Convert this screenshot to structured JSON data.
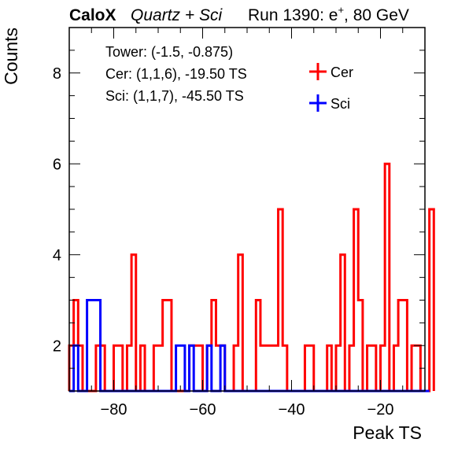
{
  "chart_data": {
    "type": "histogram",
    "title": {
      "brand": "CaloX",
      "detector": "Quartz + Sci",
      "run_info": "Run 1390: e",
      "run_superscript": "+",
      "run_tail": ", 80 GeV"
    },
    "xlabel": "Peak TS",
    "ylabel": "Counts",
    "xlim": [
      -90,
      -10
    ],
    "ylim": [
      1,
      9
    ],
    "x_ticks": [
      -80,
      -60,
      -40,
      -20
    ],
    "x_tick_labels": [
      "−80",
      "−60",
      "−40",
      "−20"
    ],
    "y_ticks": [
      2,
      4,
      6,
      8
    ],
    "y_tick_labels": [
      "2",
      "4",
      "6",
      "8"
    ],
    "bin_start": -90,
    "bin_width": 1,
    "info_box": [
      "Tower: (-1.5, -0.875)",
      "Cer: (1,1,6), -19.50 TS",
      "Sci: (1,1,7), -45.50 TS"
    ],
    "legend_position": "top-right",
    "series": [
      {
        "name": "Cer",
        "color": "#ff0000",
        "values": [
          2,
          3,
          2,
          0,
          0,
          0,
          2,
          2,
          0,
          0,
          2,
          2,
          0,
          2,
          4,
          0,
          2,
          0,
          0,
          2,
          2,
          3,
          3,
          0,
          0,
          0,
          0,
          2,
          2,
          2,
          0,
          2,
          3,
          2,
          2,
          0,
          0,
          2,
          4,
          0,
          0,
          0,
          3,
          2,
          2,
          2,
          2,
          5,
          2,
          0,
          0,
          0,
          0,
          2,
          2,
          0,
          0,
          0,
          2,
          0,
          2,
          4,
          0,
          2,
          5,
          3,
          0,
          2,
          2,
          0,
          2,
          6,
          0,
          2,
          3,
          3,
          0,
          2,
          2,
          0,
          0,
          5
        ]
      },
      {
        "name": "Sci",
        "color": "#0000ff",
        "values": [
          0,
          2,
          0,
          0,
          3,
          3,
          3,
          0,
          0,
          0,
          0,
          0,
          0,
          0,
          0,
          0,
          0,
          0,
          0,
          0,
          0,
          0,
          0,
          0,
          2,
          2,
          0,
          2,
          0,
          0,
          0,
          2,
          0,
          0,
          2,
          0,
          0,
          0,
          0,
          0,
          0,
          0,
          0,
          0,
          0,
          0,
          0,
          0,
          0,
          0,
          0,
          0,
          0,
          0,
          0,
          0,
          0,
          0,
          0,
          0,
          0,
          0,
          0,
          0,
          0,
          0,
          0,
          0,
          0,
          0,
          0,
          0,
          0,
          0,
          0,
          0,
          0,
          0,
          0,
          0,
          0
        ]
      }
    ]
  }
}
